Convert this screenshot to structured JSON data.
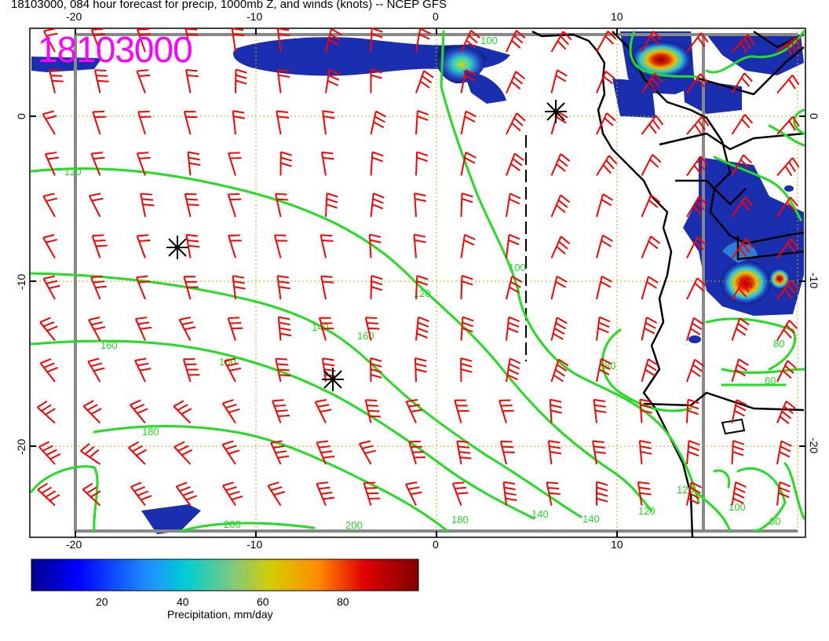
{
  "title": "18103000, 084 hour forecast for precip, 1000mb Z, and winds (knots) -- NCEP GFS",
  "datetime_stamp": "18103000",
  "axes": {
    "top_lon_ticks": [
      "-20",
      "-10",
      "0",
      "10"
    ],
    "bottom_lon_ticks": [
      "-20",
      "-10",
      "0",
      "10"
    ],
    "left_lat_ticks": [
      "0",
      "-10",
      "-20"
    ],
    "right_lat_ticks": [
      "0",
      "-10",
      "-20"
    ]
  },
  "height_contour_labels": [
    "120",
    "140",
    "160",
    "180",
    "200",
    "160",
    "140",
    "120",
    "100",
    "80",
    "60",
    "200",
    "180",
    "160",
    "140",
    "120",
    "100",
    "80",
    "100",
    "80",
    "120"
  ],
  "colorbar": {
    "label": "Precipitation, mm/day",
    "ticks": [
      "20",
      "40",
      "60",
      "80"
    ]
  },
  "colors": {
    "wind_barbs": "#ff0000",
    "height_contours": "#22dd22",
    "stamp": "#ff00ff",
    "grid_lines": "#ccaa00",
    "coastline": "#000000"
  },
  "icons": [
    "high-pressure-center-icon",
    "low-pressure-center-icon"
  ]
}
